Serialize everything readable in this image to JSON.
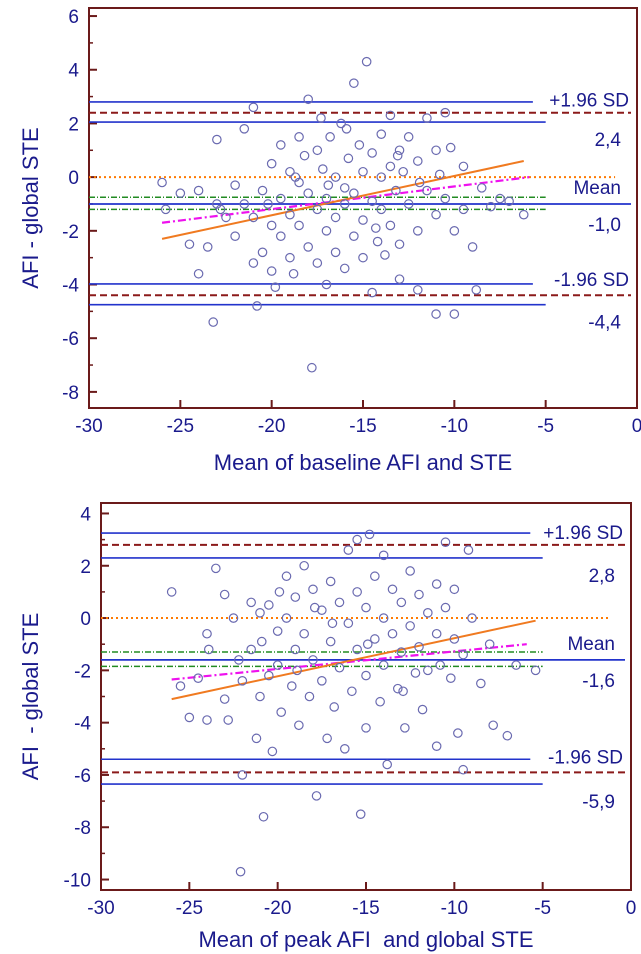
{
  "colors": {
    "text": "#1a1a8c",
    "frame": "#6b1a1a",
    "sd_line": "#2233cc",
    "ci_dash": "#8b1a1a",
    "zero_line": "#ff7a00",
    "ci_dashdot": "#228b22",
    "regression": "#f07a20",
    "regression2": "#ee11ee",
    "marker": "#6a6ab0"
  },
  "chart_data": [
    {
      "type": "scatter",
      "xlabel": "Mean of baseline AFI and STE",
      "ylabel": "AFI - global STE",
      "xlim": [
        -30,
        0
      ],
      "ylim": [
        -8.6,
        6.3
      ],
      "xticks": [
        -30,
        -25,
        -20,
        -15,
        -10,
        -5,
        0
      ],
      "yticks": [
        -8,
        -6,
        -4,
        -2,
        0,
        2,
        4,
        6
      ],
      "xtick_labels": [
        "-30",
        "-25",
        "-20",
        "-15",
        "-10",
        "-5",
        "0"
      ],
      "ytick_labels": [
        "-8",
        "-6",
        "-4",
        "-2",
        "0",
        "2",
        "4",
        "6"
      ],
      "mean": -1.0,
      "mean_label": "Mean",
      "mean_value_label": "-1,0",
      "upper_loa": 2.4,
      "upper_label": "+1.96 SD",
      "upper_value_label": "2,4",
      "upper_ci": [
        2.05,
        2.8
      ],
      "lower_loa": -4.4,
      "lower_label": "-1.96 SD",
      "lower_value_label": "-4,4",
      "lower_ci": [
        -4.75,
        -3.98
      ],
      "mean_ci": [
        -1.2,
        -0.75
      ],
      "regression": {
        "x": [
          -26,
          -6.2
        ],
        "y": [
          -2.3,
          0.6
        ]
      },
      "regression2": {
        "x": [
          -26,
          -5.9
        ],
        "y": [
          -1.7,
          0.0
        ]
      },
      "points": [
        [
          -26,
          -0.2
        ],
        [
          -25.8,
          -1.2
        ],
        [
          -25,
          -0.6
        ],
        [
          -24.5,
          -2.5
        ],
        [
          -24,
          -0.5
        ],
        [
          -24,
          -3.6
        ],
        [
          -23.5,
          -2.6
        ],
        [
          -23,
          -1.0
        ],
        [
          -23,
          1.4
        ],
        [
          -23.2,
          -5.4
        ],
        [
          -22.5,
          -1.5
        ],
        [
          -22,
          -2.2
        ],
        [
          -22,
          -0.3
        ],
        [
          -21.5,
          -1.0
        ],
        [
          -21,
          2.6
        ],
        [
          -21,
          -1.5
        ],
        [
          -21,
          -3.2
        ],
        [
          -20.8,
          -4.8
        ],
        [
          -20.5,
          -0.5
        ],
        [
          -20.5,
          -2.8
        ],
        [
          -20,
          0.5
        ],
        [
          -20,
          -1.8
        ],
        [
          -20,
          -3.5
        ],
        [
          -19.5,
          1.2
        ],
        [
          -19.5,
          -0.8
        ],
        [
          -19.5,
          -2.2
        ],
        [
          -19,
          0.2
        ],
        [
          -19,
          -1.4
        ],
        [
          -19,
          -3.0
        ],
        [
          -18.8,
          -3.6
        ],
        [
          -18.5,
          1.5
        ],
        [
          -18.5,
          -0.2
        ],
        [
          -18.5,
          -1.8
        ],
        [
          -18.2,
          0.8
        ],
        [
          -18,
          -0.6
        ],
        [
          -18,
          -2.6
        ],
        [
          -18,
          2.9
        ],
        [
          -17.8,
          -7.1
        ],
        [
          -17.5,
          1.0
        ],
        [
          -17.5,
          -1.2
        ],
        [
          -17.5,
          -3.2
        ],
        [
          -17.2,
          0.3
        ],
        [
          -17,
          -0.8
        ],
        [
          -17,
          -2.0
        ],
        [
          -17,
          -4.0
        ],
        [
          -16.8,
          1.5
        ],
        [
          -16.5,
          0.0
        ],
        [
          -16.5,
          -1.5
        ],
        [
          -16.5,
          -2.8
        ],
        [
          -16.2,
          2.0
        ],
        [
          -16,
          -0.4
        ],
        [
          -16,
          -1.0
        ],
        [
          -16,
          -3.4
        ],
        [
          -15.8,
          0.7
        ],
        [
          -15.5,
          3.5
        ],
        [
          -15.5,
          -0.6
        ],
        [
          -15.5,
          -2.2
        ],
        [
          -15.2,
          1.2
        ],
        [
          -15,
          0.2
        ],
        [
          -15,
          -1.6
        ],
        [
          -15,
          -3.0
        ],
        [
          -14.8,
          4.3
        ],
        [
          -14.5,
          0.9
        ],
        [
          -14.5,
          -0.9
        ],
        [
          -14.5,
          -4.3
        ],
        [
          -14.2,
          -2.4
        ],
        [
          -14,
          1.6
        ],
        [
          -14,
          0.0
        ],
        [
          -14,
          -1.2
        ],
        [
          -13.8,
          -2.9
        ],
        [
          -13.5,
          2.3
        ],
        [
          -13.5,
          0.4
        ],
        [
          -13.5,
          -1.8
        ],
        [
          -13.2,
          -0.5
        ],
        [
          -13,
          1.0
        ],
        [
          -13,
          -2.5
        ],
        [
          -13,
          -3.8
        ],
        [
          -12.8,
          0.2
        ],
        [
          -12.5,
          1.5
        ],
        [
          -12.5,
          -1.0
        ],
        [
          -12,
          0.6
        ],
        [
          -12,
          -2.0
        ],
        [
          -12,
          -4.2
        ],
        [
          -11.5,
          2.2
        ],
        [
          -11.5,
          -0.5
        ],
        [
          -11,
          1.0
        ],
        [
          -11,
          -1.4
        ],
        [
          -11,
          -5.1
        ],
        [
          -10.8,
          0.1
        ],
        [
          -10.5,
          2.4
        ],
        [
          -10.5,
          -0.8
        ],
        [
          -10.2,
          1.1
        ],
        [
          -10,
          -2.0
        ],
        [
          -10,
          -5.1
        ],
        [
          -9.5,
          0.4
        ],
        [
          -9.5,
          -1.2
        ],
        [
          -9,
          -2.6
        ],
        [
          -8.8,
          -4.2
        ],
        [
          -8.5,
          -0.4
        ],
        [
          -8,
          -1.1
        ],
        [
          -7.5,
          -0.8
        ],
        [
          -7,
          -0.9
        ],
        [
          -6.2,
          -1.4
        ],
        [
          -21.5,
          1.8
        ],
        [
          -22.8,
          -1.2
        ],
        [
          -19.8,
          -4.1
        ],
        [
          -18.7,
          0.0
        ],
        [
          -16.9,
          -0.3
        ],
        [
          -15.9,
          1.8
        ],
        [
          -14.3,
          -1.9
        ],
        [
          -13.1,
          0.8
        ],
        [
          -11.9,
          -0.2
        ],
        [
          -17.3,
          2.2
        ],
        [
          -20.2,
          -1.0
        ]
      ]
    },
    {
      "type": "scatter",
      "xlabel": "Mean of peak AFI  and global STE",
      "ylabel": "AFI  - global STE",
      "xlim": [
        -30,
        0
      ],
      "ylim": [
        -10.4,
        4.4
      ],
      "xticks": [
        -30,
        -25,
        -20,
        -15,
        -10,
        -5,
        0
      ],
      "yticks": [
        -10,
        -8,
        -6,
        -4,
        -2,
        0,
        2,
        4
      ],
      "xtick_labels": [
        "-30",
        "-25",
        "-20",
        "-15",
        "-10",
        "-5",
        "0"
      ],
      "ytick_labels": [
        "-10",
        "-8",
        "-6",
        "-4",
        "-2",
        "0",
        "2",
        "4"
      ],
      "mean": -1.6,
      "mean_label": "Mean",
      "mean_value_label": "-1,6",
      "upper_loa": 2.8,
      "upper_label": "+1.96 SD",
      "upper_value_label": "2,8",
      "upper_ci": [
        2.3,
        3.25
      ],
      "lower_loa": -5.9,
      "lower_label": "-1.96 SD",
      "lower_value_label": "-5,9",
      "lower_ci": [
        -6.35,
        -5.4
      ],
      "mean_ci": [
        -1.85,
        -1.3
      ],
      "regression": {
        "x": [
          -26,
          -5.4
        ],
        "y": [
          -3.1,
          -0.1
        ]
      },
      "regression2": {
        "x": [
          -26,
          -5.9
        ],
        "y": [
          -2.35,
          -1.0
        ]
      },
      "points": [
        [
          -26,
          1.0
        ],
        [
          -25.5,
          -2.6
        ],
        [
          -25,
          -3.8
        ],
        [
          -24.5,
          -2.3
        ],
        [
          -24,
          -0.6
        ],
        [
          -24,
          -3.9
        ],
        [
          -23.5,
          1.9
        ],
        [
          -23,
          0.9
        ],
        [
          -23,
          -3.1
        ],
        [
          -22.8,
          -3.9
        ],
        [
          -22.5,
          0.0
        ],
        [
          -22.2,
          -1.6
        ],
        [
          -22,
          -2.4
        ],
        [
          -22,
          -6.0
        ],
        [
          -22.1,
          -9.7
        ],
        [
          -21.5,
          0.6
        ],
        [
          -21.5,
          -1.2
        ],
        [
          -21.2,
          -4.6
        ],
        [
          -21,
          0.2
        ],
        [
          -21,
          -3.0
        ],
        [
          -20.8,
          -7.6
        ],
        [
          -20.5,
          0.5
        ],
        [
          -20.5,
          -2.2
        ],
        [
          -20.3,
          -5.1
        ],
        [
          -20,
          -0.5
        ],
        [
          -20,
          -1.8
        ],
        [
          -19.8,
          -3.6
        ],
        [
          -19.5,
          1.6
        ],
        [
          -19.5,
          0.0
        ],
        [
          -19.2,
          -2.6
        ],
        [
          -19,
          0.8
        ],
        [
          -19,
          -1.2
        ],
        [
          -18.8,
          -4.1
        ],
        [
          -18.5,
          2.0
        ],
        [
          -18.5,
          -0.6
        ],
        [
          -18.2,
          -3.0
        ],
        [
          -18,
          1.1
        ],
        [
          -18,
          -1.6
        ],
        [
          -17.8,
          -6.8
        ],
        [
          -17.5,
          0.3
        ],
        [
          -17.5,
          -2.4
        ],
        [
          -17.2,
          -4.6
        ],
        [
          -17,
          1.4
        ],
        [
          -17,
          -0.9
        ],
        [
          -16.8,
          -3.4
        ],
        [
          -16.5,
          0.6
        ],
        [
          -16.5,
          -1.9
        ],
        [
          -16.2,
          -5.0
        ],
        [
          -16,
          2.6
        ],
        [
          -16,
          -0.2
        ],
        [
          -15.8,
          -2.8
        ],
        [
          -15.5,
          3.0
        ],
        [
          -15.5,
          1.0
        ],
        [
          -15.5,
          -1.2
        ],
        [
          -15.3,
          -7.5
        ],
        [
          -15,
          0.4
        ],
        [
          -15,
          -2.2
        ],
        [
          -15,
          -4.2
        ],
        [
          -14.8,
          3.2
        ],
        [
          -14.5,
          1.6
        ],
        [
          -14.5,
          -0.8
        ],
        [
          -14.2,
          -3.2
        ],
        [
          -14,
          2.4
        ],
        [
          -14,
          0.0
        ],
        [
          -14,
          -1.8
        ],
        [
          -13.8,
          -5.6
        ],
        [
          -13.5,
          1.1
        ],
        [
          -13.5,
          -0.6
        ],
        [
          -13.2,
          -2.7
        ],
        [
          -13,
          0.6
        ],
        [
          -13,
          -1.3
        ],
        [
          -12.8,
          -4.2
        ],
        [
          -12.5,
          1.8
        ],
        [
          -12.5,
          -0.3
        ],
        [
          -12.2,
          -2.1
        ],
        [
          -12,
          0.9
        ],
        [
          -12,
          -1.1
        ],
        [
          -11.8,
          -3.5
        ],
        [
          -11.5,
          0.2
        ],
        [
          -11.5,
          -2.0
        ],
        [
          -11,
          1.3
        ],
        [
          -11,
          -0.6
        ],
        [
          -11,
          -4.9
        ],
        [
          -10.8,
          -1.8
        ],
        [
          -10.5,
          2.9
        ],
        [
          -10.5,
          0.4
        ],
        [
          -10.2,
          -2.3
        ],
        [
          -10,
          1.1
        ],
        [
          -10,
          -0.8
        ],
        [
          -9.8,
          -4.4
        ],
        [
          -9.5,
          -5.8
        ],
        [
          -9.5,
          -1.4
        ],
        [
          -9.2,
          2.6
        ],
        [
          -9,
          0.0
        ],
        [
          -8.5,
          -2.5
        ],
        [
          -8,
          -1.0
        ],
        [
          -7.8,
          -4.1
        ],
        [
          -7,
          -4.5
        ],
        [
          -6.5,
          -1.8
        ],
        [
          -5.4,
          -2.0
        ],
        [
          -23.9,
          -1.2
        ],
        [
          -20.9,
          -0.9
        ],
        [
          -18.9,
          -2.0
        ],
        [
          -16.9,
          -0.2
        ],
        [
          -14.9,
          -1.0
        ],
        [
          -12.9,
          -2.8
        ],
        [
          -17.9,
          0.4
        ],
        [
          -19.9,
          1.0
        ]
      ]
    }
  ]
}
